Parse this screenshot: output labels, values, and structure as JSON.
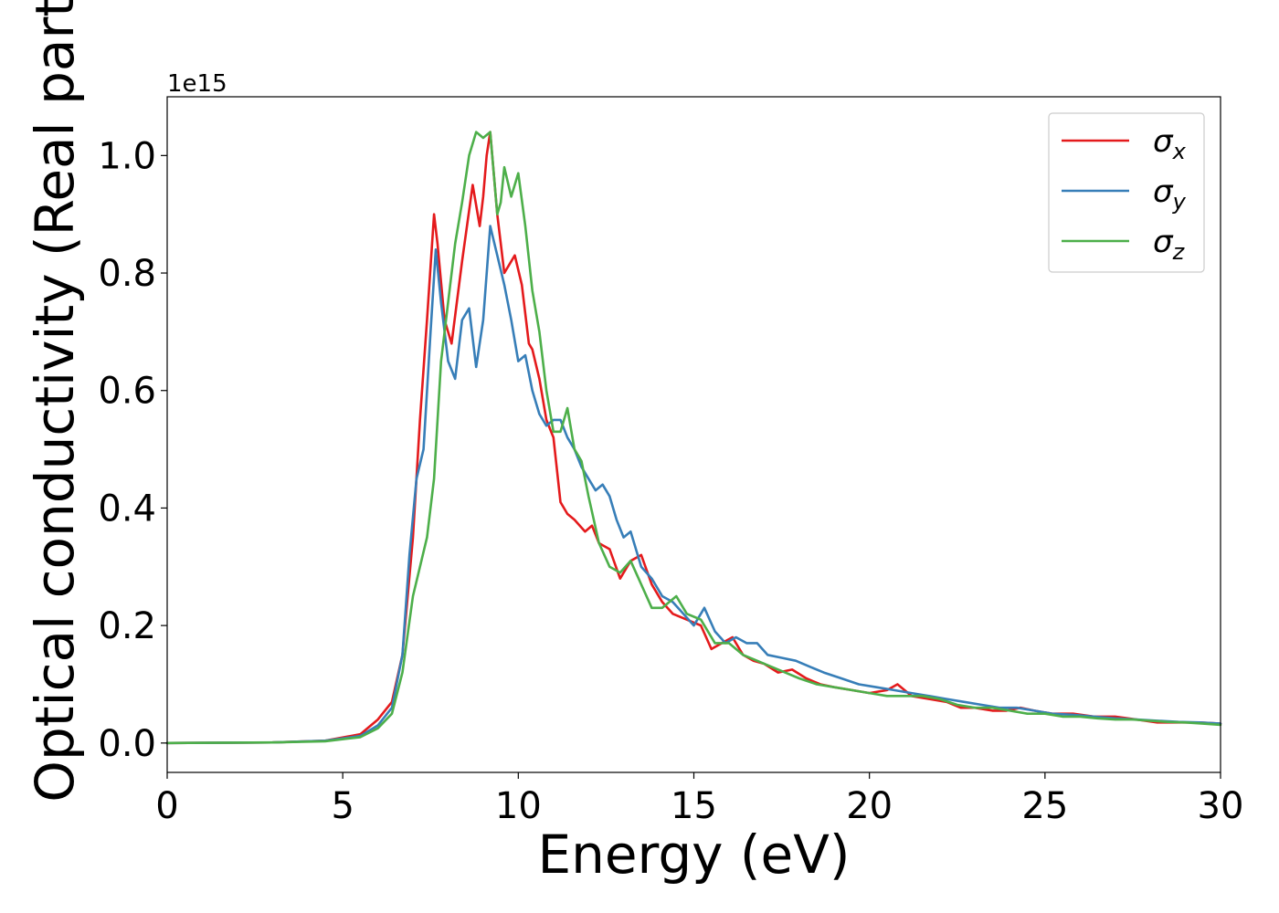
{
  "chart_data": {
    "type": "line",
    "xlabel": "Energy (eV)",
    "ylabel": "Optical conductivity (Real part)",
    "y_offset_label": "1e15",
    "xlim": [
      0,
      30
    ],
    "ylim": [
      -0.05,
      1.1
    ],
    "x_ticks": [
      0,
      5,
      10,
      15,
      20,
      25,
      30
    ],
    "x_tick_labels": [
      "0",
      "5",
      "10",
      "15",
      "20",
      "25",
      "30"
    ],
    "y_ticks": [
      0.0,
      0.2,
      0.4,
      0.6,
      0.8,
      1.0
    ],
    "y_tick_labels": [
      "0.0",
      "0.2",
      "0.4",
      "0.6",
      "0.8",
      "1.0"
    ],
    "grid": false,
    "legend_position": "top-right",
    "series": [
      {
        "name": "σ_x",
        "legend_symbol": "σ",
        "legend_subscript": "x",
        "color": "#e41a1c",
        "x": [
          0,
          3,
          4.5,
          5.5,
          6.0,
          6.4,
          6.7,
          7.0,
          7.2,
          7.4,
          7.6,
          7.7,
          7.9,
          8.1,
          8.4,
          8.7,
          8.9,
          9.0,
          9.1,
          9.2,
          9.4,
          9.6,
          9.9,
          10.1,
          10.3,
          10.4,
          10.6,
          10.8,
          11.0,
          11.2,
          11.4,
          11.6,
          11.9,
          12.1,
          12.3,
          12.6,
          12.9,
          13.2,
          13.5,
          13.8,
          14.1,
          14.4,
          14.8,
          15.2,
          15.5,
          15.8,
          16.1,
          16.4,
          16.7,
          17.0,
          17.4,
          17.8,
          18.2,
          18.6,
          19.0,
          19.5,
          20.0,
          20.5,
          20.8,
          21.2,
          21.7,
          22.2,
          22.6,
          23.0,
          23.5,
          23.9,
          24.3,
          24.7,
          25.2,
          25.8,
          26.4,
          27.0,
          27.6,
          28.2,
          28.8,
          29.4,
          30.0
        ],
        "y": [
          0,
          0.001,
          0.004,
          0.015,
          0.04,
          0.07,
          0.15,
          0.35,
          0.55,
          0.72,
          0.9,
          0.85,
          0.72,
          0.68,
          0.82,
          0.95,
          0.88,
          0.93,
          1.0,
          1.04,
          0.9,
          0.8,
          0.83,
          0.78,
          0.68,
          0.67,
          0.62,
          0.55,
          0.52,
          0.41,
          0.39,
          0.38,
          0.36,
          0.37,
          0.34,
          0.33,
          0.28,
          0.31,
          0.32,
          0.27,
          0.24,
          0.22,
          0.21,
          0.2,
          0.16,
          0.17,
          0.18,
          0.15,
          0.14,
          0.135,
          0.12,
          0.125,
          0.11,
          0.1,
          0.095,
          0.09,
          0.085,
          0.09,
          0.1,
          0.08,
          0.075,
          0.07,
          0.06,
          0.06,
          0.055,
          0.055,
          0.06,
          0.055,
          0.05,
          0.05,
          0.045,
          0.045,
          0.04,
          0.035,
          0.035,
          0.035,
          0.033
        ]
      },
      {
        "name": "σ_y",
        "legend_symbol": "σ",
        "legend_subscript": "y",
        "color": "#377eb8",
        "x": [
          0,
          3,
          4.5,
          5.5,
          6.0,
          6.4,
          6.7,
          6.9,
          7.1,
          7.3,
          7.5,
          7.65,
          7.8,
          8.0,
          8.2,
          8.4,
          8.6,
          8.8,
          9.0,
          9.2,
          9.4,
          9.6,
          9.8,
          10.0,
          10.2,
          10.4,
          10.6,
          10.8,
          11.0,
          11.2,
          11.4,
          11.6,
          11.8,
          12.0,
          12.2,
          12.4,
          12.6,
          12.8,
          13.0,
          13.2,
          13.5,
          13.8,
          14.1,
          14.4,
          14.7,
          15.0,
          15.3,
          15.6,
          15.9,
          16.2,
          16.5,
          16.8,
          17.1,
          17.5,
          17.9,
          18.3,
          18.7,
          19.2,
          19.7,
          20.2,
          20.7,
          21.2,
          21.7,
          22.2,
          22.7,
          23.2,
          23.7,
          24.2,
          24.7,
          25.2,
          25.8,
          26.4,
          27.0,
          27.6,
          28.2,
          28.8,
          29.4,
          30.0
        ],
        "y": [
          0,
          0.001,
          0.004,
          0.012,
          0.03,
          0.06,
          0.15,
          0.32,
          0.45,
          0.5,
          0.7,
          0.84,
          0.75,
          0.65,
          0.62,
          0.72,
          0.74,
          0.64,
          0.72,
          0.88,
          0.83,
          0.78,
          0.72,
          0.65,
          0.66,
          0.6,
          0.56,
          0.54,
          0.55,
          0.55,
          0.52,
          0.5,
          0.47,
          0.45,
          0.43,
          0.44,
          0.42,
          0.38,
          0.35,
          0.36,
          0.3,
          0.28,
          0.25,
          0.24,
          0.22,
          0.2,
          0.23,
          0.19,
          0.17,
          0.18,
          0.17,
          0.17,
          0.15,
          0.145,
          0.14,
          0.13,
          0.12,
          0.11,
          0.1,
          0.095,
          0.09,
          0.085,
          0.08,
          0.075,
          0.07,
          0.065,
          0.06,
          0.06,
          0.055,
          0.05,
          0.048,
          0.045,
          0.042,
          0.04,
          0.038,
          0.036,
          0.035,
          0.033
        ]
      },
      {
        "name": "σ_z",
        "legend_symbol": "σ",
        "legend_subscript": "z",
        "color": "#4daf4a",
        "x": [
          0,
          3,
          4.5,
          5.5,
          6.0,
          6.4,
          6.7,
          7.0,
          7.2,
          7.4,
          7.6,
          7.8,
          8.0,
          8.2,
          8.4,
          8.6,
          8.8,
          9.0,
          9.2,
          9.4,
          9.5,
          9.6,
          9.8,
          10.0,
          10.2,
          10.4,
          10.6,
          10.8,
          11.0,
          11.2,
          11.4,
          11.6,
          11.8,
          12.0,
          12.3,
          12.6,
          12.9,
          13.2,
          13.5,
          13.8,
          14.1,
          14.5,
          14.8,
          15.2,
          15.6,
          16.0,
          16.4,
          16.8,
          17.2,
          17.6,
          18.0,
          18.5,
          19.0,
          19.5,
          20.0,
          20.5,
          21.0,
          21.5,
          22.0,
          22.5,
          23.0,
          23.5,
          24.0,
          24.5,
          25.0,
          25.5,
          26.0,
          26.5,
          27.0,
          27.5,
          28.0,
          28.5,
          29.0,
          29.5,
          30.0
        ],
        "y": [
          0,
          0.001,
          0.003,
          0.01,
          0.025,
          0.05,
          0.12,
          0.25,
          0.3,
          0.35,
          0.45,
          0.65,
          0.75,
          0.85,
          0.92,
          1.0,
          1.04,
          1.03,
          1.04,
          0.9,
          0.92,
          0.98,
          0.93,
          0.97,
          0.88,
          0.77,
          0.7,
          0.6,
          0.53,
          0.53,
          0.57,
          0.5,
          0.48,
          0.42,
          0.34,
          0.3,
          0.29,
          0.31,
          0.27,
          0.23,
          0.23,
          0.25,
          0.22,
          0.21,
          0.17,
          0.17,
          0.15,
          0.14,
          0.13,
          0.12,
          0.11,
          0.1,
          0.095,
          0.09,
          0.085,
          0.08,
          0.08,
          0.08,
          0.075,
          0.065,
          0.06,
          0.06,
          0.055,
          0.05,
          0.05,
          0.045,
          0.045,
          0.042,
          0.04,
          0.04,
          0.038,
          0.036,
          0.035,
          0.033,
          0.031
        ]
      }
    ]
  }
}
